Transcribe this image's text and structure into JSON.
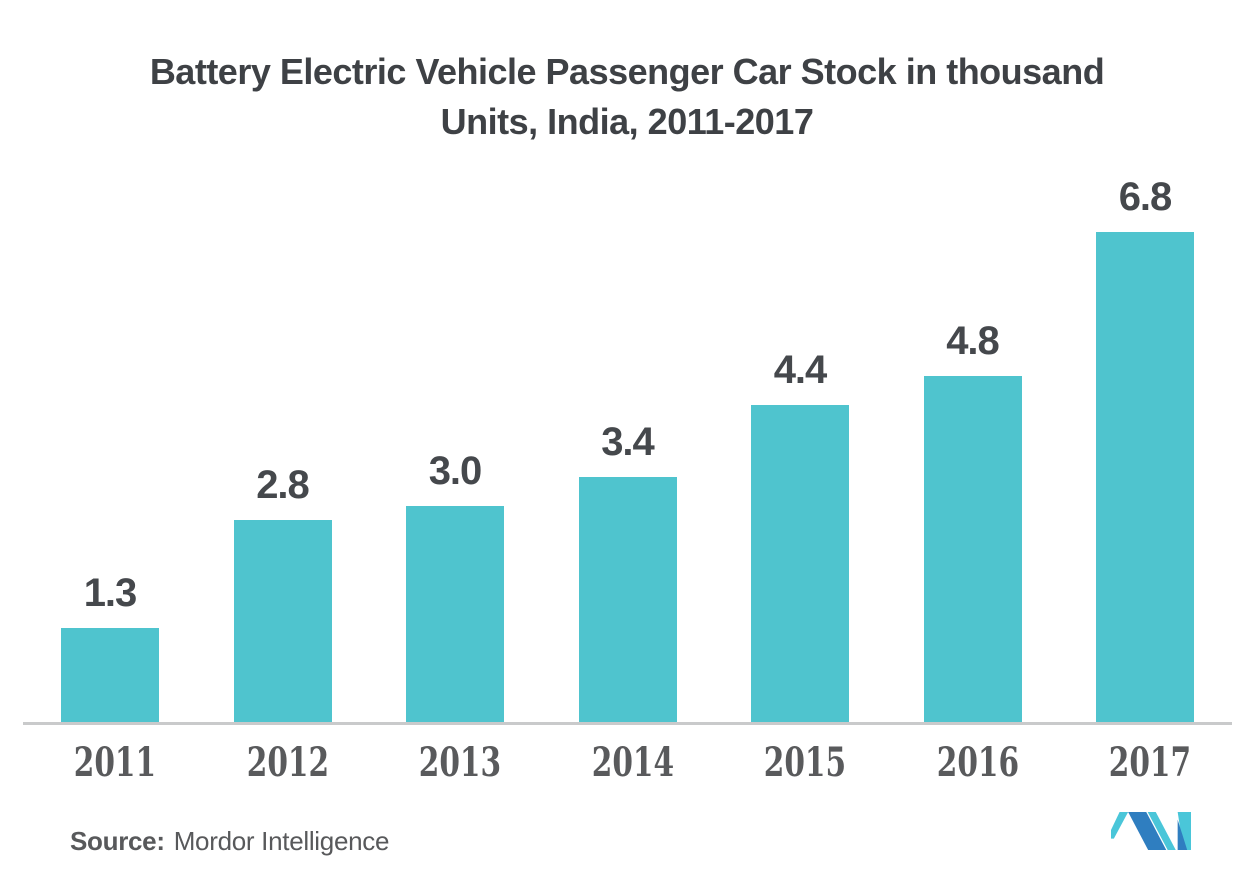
{
  "title": {
    "line1": "Battery Electric Vehicle Passenger Car Stock in thousand",
    "line2": "Units, India, 2011-2017"
  },
  "chart_data": {
    "type": "bar",
    "title": "Battery Electric Vehicle Passenger Car Stock in thousand Units, India, 2011-2017",
    "categories": [
      "2011",
      "2012",
      "2013",
      "2014",
      "2015",
      "2016",
      "2017"
    ],
    "values": [
      1.3,
      2.8,
      3.0,
      3.4,
      4.4,
      4.8,
      6.8
    ],
    "value_labels": [
      "1.3",
      "2.8",
      "3.0",
      "3.4",
      "4.4",
      "4.8",
      "6.8"
    ],
    "xlabel": "",
    "ylabel": "",
    "ylim": [
      0,
      7.5
    ],
    "grid": false,
    "legend": "none",
    "bar_color": "#4FC4CE"
  },
  "source": {
    "label": "Source:",
    "text": "Mordor Intelligence"
  },
  "logo": {
    "name": "mordor-intelligence-logo",
    "teal": "#4AC6D9",
    "blue": "#2F7EC0"
  },
  "colors": {
    "background": "#FFFFFF",
    "title_text": "#3E4145",
    "value_label": "#45484C",
    "axis_label": "#595A5C",
    "axis_line": "#C9CACB",
    "source_text": "#58595B"
  }
}
